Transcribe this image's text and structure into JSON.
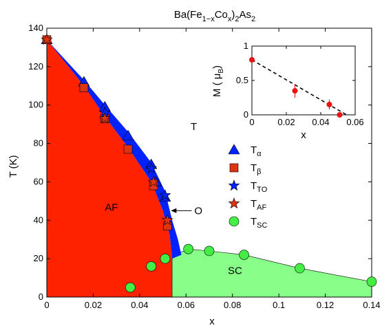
{
  "chart_data": [
    {
      "type": "scatter",
      "title_parts": {
        "a": "Ba(Fe",
        "b": "1−x",
        "c": "Co",
        "d": "x",
        "e": ")",
        "f": "2",
        "g": "As",
        "h": "2"
      },
      "xlabel": "x",
      "ylabel": "T (K)",
      "xlim": [
        0,
        0.14
      ],
      "ylim": [
        0,
        140
      ],
      "x_ticks": [
        "0",
        "0.02",
        "0.04",
        "0.06",
        "0.08",
        "0.1",
        "0.12",
        "0.14"
      ],
      "y_ticks": [
        "0",
        "20",
        "40",
        "60",
        "80",
        "100",
        "120",
        "140"
      ],
      "regions": [
        {
          "label": "AF",
          "color": "#ff2200",
          "label_at": [
            0.025,
            45
          ]
        },
        {
          "label": "T",
          "color": "#0022ff",
          "label_at": [
            0.062,
            87
          ]
        },
        {
          "label": "SC",
          "color": "#88ff88",
          "label_at": [
            0.078,
            12
          ]
        }
      ],
      "annotation": {
        "text": "O",
        "x": 0.0535,
        "y": 45
      },
      "series": [
        {
          "name_main": "T",
          "name_sub": "α",
          "marker": "triangle",
          "color": "#0022ff",
          "x": [
            0,
            0.016,
            0.025,
            0.035,
            0.045,
            0.047,
            0.051
          ],
          "y": [
            134,
            112,
            99,
            84,
            69,
            60,
            52
          ]
        },
        {
          "name_main": "T",
          "name_sub": "β",
          "marker": "square",
          "color": "#dd3311",
          "x": [
            0,
            0.016,
            0.025,
            0.035,
            0.046,
            0.052
          ],
          "y": [
            134,
            109,
            93,
            77,
            58,
            37
          ]
        },
        {
          "name_main": "T",
          "name_sub": "TO",
          "marker": "star",
          "color": "#0022ff",
          "x": [
            0,
            0.025,
            0.045,
            0.051
          ],
          "y": [
            134,
            96,
            67,
            53
          ]
        },
        {
          "name_main": "T",
          "name_sub": "AF",
          "marker": "star",
          "color": "#dd3311",
          "x": [
            0,
            0.025,
            0.046,
            0.052
          ],
          "y": [
            134,
            93,
            60,
            40
          ]
        },
        {
          "name_main": "T",
          "name_sub": "SC",
          "marker": "circle",
          "color": "#44ee44",
          "x": [
            0.036,
            0.045,
            0.051,
            0.061,
            0.07,
            0.085,
            0.109,
            0.14
          ],
          "y": [
            5,
            16,
            20,
            25,
            24,
            22,
            15,
            8
          ]
        }
      ]
    },
    {
      "type": "scatter",
      "xlabel": "x",
      "ylabel_main": "M ( μ",
      "ylabel_sub": "B",
      "ylabel_end": ")",
      "xlim": [
        0,
        0.06
      ],
      "ylim": [
        0,
        1
      ],
      "x_ticks": [
        "0",
        "0.02",
        "0.04",
        "0.06"
      ],
      "y_ticks": [
        "0",
        "0.5",
        "1"
      ],
      "points": [
        {
          "x": 0.0,
          "y": 0.8,
          "err": 0.04
        },
        {
          "x": 0.025,
          "y": 0.35,
          "err": 0.1
        },
        {
          "x": 0.045,
          "y": 0.15,
          "err": 0.07
        },
        {
          "x": 0.051,
          "y": 0.0,
          "err": 0.0
        }
      ],
      "fit_line": {
        "x": [
          0,
          0.055
        ],
        "y": [
          0.8,
          0.0
        ]
      },
      "marker_color": "#ee1111"
    }
  ]
}
